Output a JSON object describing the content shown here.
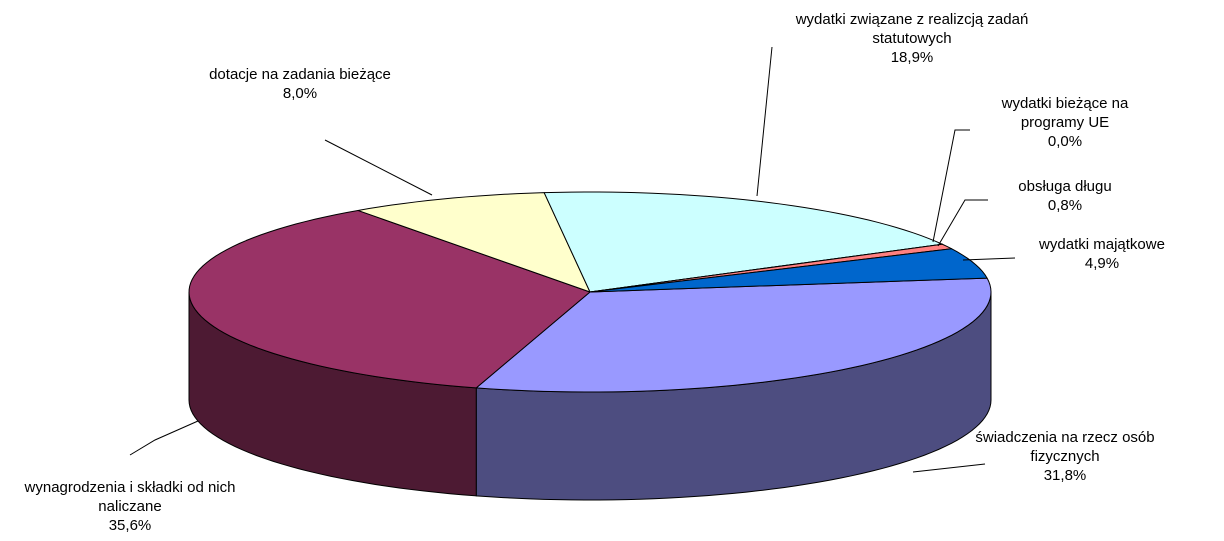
{
  "chart_data": {
    "type": "pie",
    "three_d": true,
    "categories": [
      "świadczenia na rzecz osób fizycznych",
      "wynagrodzenia i składki od nich naliczane",
      "dotacje na zadania bieżące",
      "wydatki związane z realizcją zadań statutowych",
      "wydatki bieżące na programy UE",
      "obsługa długu",
      "wydatki majątkowe"
    ],
    "values": [
      31.8,
      35.6,
      8.0,
      18.9,
      0.0,
      0.8,
      4.9
    ],
    "value_labels": [
      "31,8%",
      "35,6%",
      "8,0%",
      "18,9%",
      "0,0%",
      "0,8%",
      "4,9%"
    ],
    "colors": [
      "#9999ff",
      "#993366",
      "#ffffcc",
      "#ccffff",
      "#660066",
      "#ff8080",
      "#0066cc"
    ]
  }
}
